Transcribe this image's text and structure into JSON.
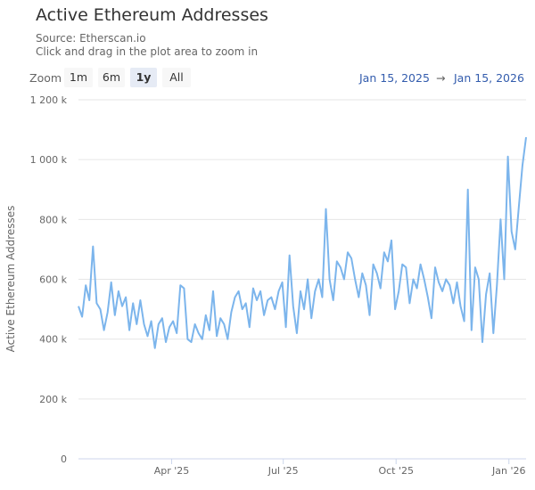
{
  "header": {
    "title": "Active Ethereum Addresses",
    "source": "Source: Etherscan.io",
    "hint": "Click and drag in the plot area to zoom in"
  },
  "range_selector": {
    "label": "Zoom",
    "buttons": [
      "1m",
      "6m",
      "1y",
      "All"
    ],
    "selected": "1y",
    "from": "Jan 15, 2025",
    "arrow": "→",
    "to": "Jan 15, 2026"
  },
  "colors": {
    "series": "#7cb5ec",
    "grid": "#e6e6e6",
    "range_text": "#335cad"
  },
  "chart_data": {
    "type": "line",
    "title": "Active Ethereum Addresses",
    "subtitle": "Source: Etherscan.io",
    "xlabel": "",
    "ylabel": "Active Ethereum Addresses",
    "x_start": "2025-01-15",
    "x_end": "2026-01-15",
    "ylim": [
      0,
      1200000
    ],
    "y_ticks": [
      0,
      200000,
      400000,
      600000,
      800000,
      1000000,
      1200000
    ],
    "y_tick_labels": [
      "0",
      "200 k",
      "400 k",
      "600 k",
      "800 k",
      "1 000 k",
      "1 200 k"
    ],
    "x_ticks": [
      {
        "label": "Apr '25",
        "day": 76
      },
      {
        "label": "Jul '25",
        "day": 167
      },
      {
        "label": "Oct '25",
        "day": 259
      },
      {
        "label": "Jan '26",
        "day": 351
      }
    ],
    "grid": true,
    "legend": "none",
    "series": [
      {
        "name": "Active Ethereum Addresses",
        "values_k": [
          510,
          475,
          580,
          530,
          710,
          520,
          500,
          430,
          490,
          590,
          480,
          560,
          510,
          540,
          430,
          520,
          450,
          530,
          450,
          410,
          460,
          370,
          450,
          470,
          390,
          440,
          460,
          420,
          580,
          570,
          400,
          390,
          450,
          420,
          400,
          480,
          430,
          560,
          410,
          470,
          450,
          400,
          490,
          540,
          560,
          500,
          520,
          440,
          570,
          530,
          560,
          480,
          530,
          540,
          500,
          560,
          590,
          440,
          680,
          510,
          420,
          560,
          500,
          600,
          470,
          560,
          600,
          540,
          835,
          600,
          530,
          660,
          640,
          600,
          690,
          670,
          600,
          540,
          620,
          580,
          480,
          650,
          620,
          570,
          690,
          660,
          730,
          500,
          560,
          650,
          640,
          520,
          600,
          570,
          650,
          600,
          540,
          470,
          640,
          590,
          560,
          600,
          580,
          520,
          590,
          510,
          460,
          900,
          430,
          640,
          600,
          390,
          550,
          620,
          420,
          580,
          800,
          600,
          1010,
          760,
          700,
          840,
          980,
          1075
        ]
      }
    ]
  }
}
